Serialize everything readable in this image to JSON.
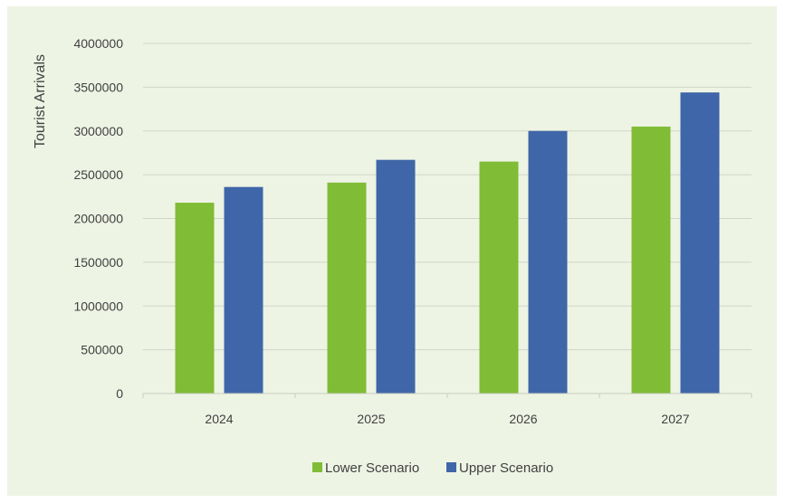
{
  "chart_data": {
    "type": "bar",
    "categories": [
      "2024",
      "2025",
      "2026",
      "2027"
    ],
    "series": [
      {
        "name": "Lower Scenario",
        "color": "#80bc36",
        "values": [
          2180000,
          2410000,
          2650000,
          3050000
        ]
      },
      {
        "name": "Upper Scenario",
        "color": "#3f66a8",
        "values": [
          2360000,
          2670000,
          3000000,
          3440000
        ]
      }
    ],
    "title": "",
    "xlabel": "",
    "ylabel": "Tourist Arrivals",
    "ylim": [
      0,
      4000000
    ],
    "yticks": [
      "0",
      "500000",
      "1000000",
      "1500000",
      "2000000",
      "2500000",
      "3000000",
      "3500000",
      "4000000"
    ],
    "grid": true,
    "legend_position": "bottom"
  }
}
